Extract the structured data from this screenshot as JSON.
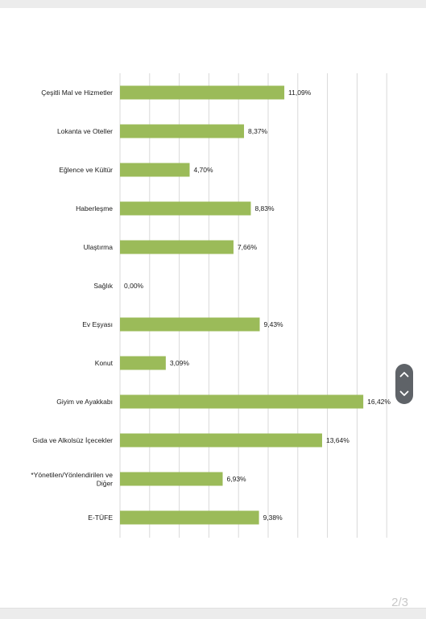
{
  "page_indicator": "2/3",
  "colors": {
    "bar": "#9bbb59",
    "grid": "#d9d9d9",
    "scroll_control": "#5f6368"
  },
  "controls": {
    "scroll_up_icon": "chevron-up-icon",
    "scroll_down_icon": "chevron-down-icon"
  },
  "chart_data": {
    "type": "bar",
    "orientation": "horizontal",
    "categories": [
      "Çeşitli Mal ve Hizmetler",
      "Lokanta ve Oteller",
      "Eğlence ve Kültür",
      "Haberleşme",
      "Ulaştırma",
      "Sağlık",
      "Ev Eşyası",
      "Konut",
      "Giyim ve Ayakkabı",
      "Gıda ve Alkolsüz İçecekler",
      "*Yönetilen/Yönlendirilen ve Diğer",
      "E-TÜFE"
    ],
    "category_lines": [
      [
        "Çeşitli Mal ve Hizmetler"
      ],
      [
        "Lokanta ve Oteller"
      ],
      [
        "Eğlence ve Kültür"
      ],
      [
        "Haberleşme"
      ],
      [
        "Ulaştırma"
      ],
      [
        "Sağlık"
      ],
      [
        "Ev Eşyası"
      ],
      [
        "Konut"
      ],
      [
        "Giyim ve Ayakkabı"
      ],
      [
        "Gıda ve Alkolsüz İçecekler"
      ],
      [
        "*Yönetilen/Yönlendirilen ve",
        "Diğer"
      ],
      [
        "E-TÜFE"
      ]
    ],
    "values": [
      11.09,
      8.37,
      4.7,
      8.83,
      7.66,
      0.0,
      9.43,
      3.09,
      16.42,
      13.64,
      6.93,
      9.38
    ],
    "value_labels": [
      "11,09%",
      "8,37%",
      "4,70%",
      "8,83%",
      "7,66%",
      "0,00%",
      "9,43%",
      "3,09%",
      "16,42%",
      "13,64%",
      "6,93%",
      "9,38%"
    ],
    "xlim": [
      0,
      18
    ],
    "x_tick_step": 2,
    "grid": true,
    "title": "",
    "xlabel": "",
    "ylabel": ""
  }
}
